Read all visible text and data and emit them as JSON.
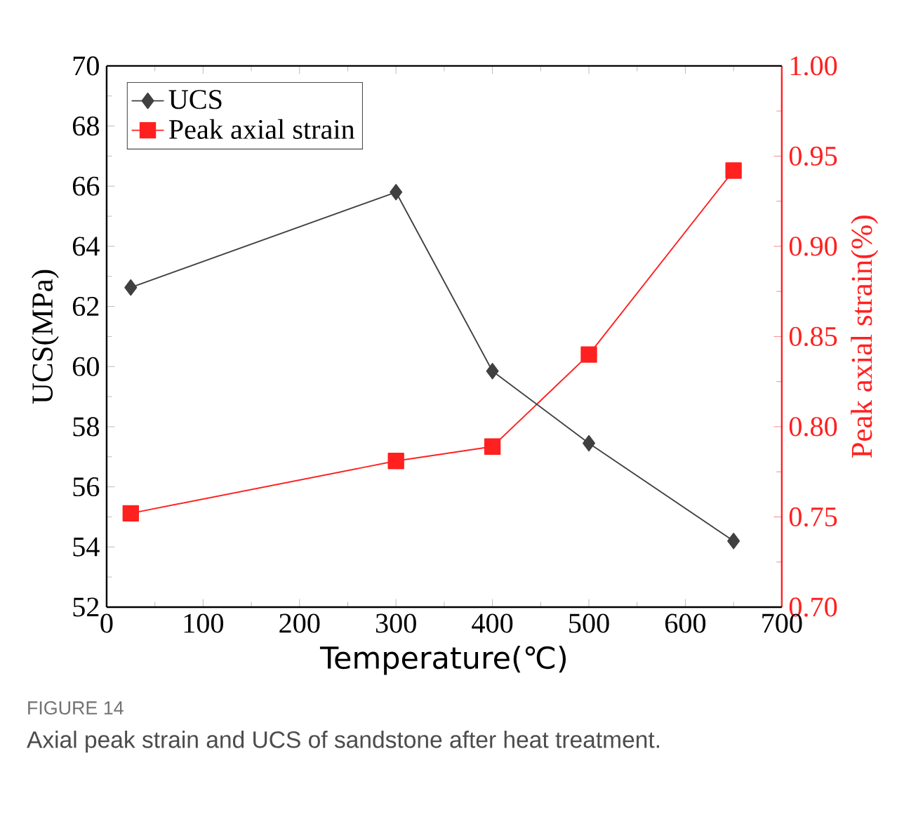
{
  "chart_data": {
    "type": "line",
    "xlabel": "Temperature(℃)",
    "ylabel": "UCS(MPa)",
    "y2label": "Peak axial strain(%)",
    "x": [
      25,
      300,
      400,
      500,
      650
    ],
    "series": [
      {
        "name": "UCS",
        "color": "#404040",
        "marker": "diamond",
        "values": [
          62.63,
          65.8,
          59.85,
          57.45,
          54.2
        ]
      },
      {
        "name": "Peak axial strain",
        "color": "#ff2020",
        "marker": "square",
        "axis": "y2",
        "values": [
          0.752,
          0.781,
          0.789,
          0.84,
          0.942
        ]
      }
    ],
    "xlim": [
      0,
      700
    ],
    "xticks": [
      0,
      100,
      200,
      300,
      400,
      500,
      600,
      700
    ],
    "ylim": [
      52,
      70
    ],
    "yticks": [
      52,
      54,
      56,
      58,
      60,
      62,
      64,
      66,
      68,
      70
    ],
    "y2lim": [
      0.7,
      1.0
    ],
    "y2ticks": [
      {
        "value": 0.7,
        "label": "0.70"
      },
      {
        "value": 0.75,
        "label": "0.75"
      },
      {
        "value": 0.8,
        "label": "0.80"
      },
      {
        "value": 0.85,
        "label": "0.85"
      },
      {
        "value": 0.9,
        "label": "0.90"
      },
      {
        "value": 0.95,
        "label": "0.95"
      },
      {
        "value": 1.0,
        "label": "1.00"
      }
    ],
    "legend": "top left",
    "grid": false,
    "line_style": "solid",
    "annotations": [
      "FIGURE 14",
      "Axial peak strain and UCS of sandstone after heat treatment."
    ]
  }
}
